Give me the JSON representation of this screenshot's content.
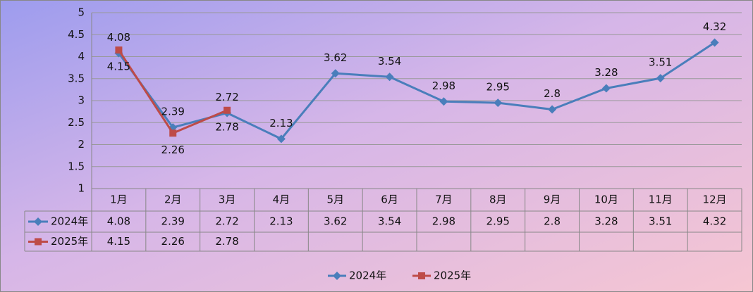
{
  "chart_data": {
    "type": "line",
    "categories": [
      "1月",
      "2月",
      "3月",
      "4月",
      "5月",
      "6月",
      "7月",
      "8月",
      "9月",
      "10月",
      "11月",
      "12月"
    ],
    "series": [
      {
        "name": "2024年",
        "color": "#4a7ebb",
        "marker": "diamond",
        "values": [
          4.08,
          2.39,
          2.72,
          2.13,
          3.62,
          3.54,
          2.98,
          2.95,
          2.8,
          3.28,
          3.51,
          4.32
        ]
      },
      {
        "name": "2025年",
        "color": "#be4b48",
        "marker": "square",
        "values": [
          4.15,
          2.26,
          2.78,
          null,
          null,
          null,
          null,
          null,
          null,
          null,
          null,
          null
        ]
      }
    ],
    "ylim": [
      1,
      5
    ],
    "yticks": [
      1,
      1.5,
      2,
      2.5,
      3,
      3.5,
      4,
      4.5,
      5
    ],
    "grid": true,
    "legend": "bottom",
    "data_table": true
  }
}
